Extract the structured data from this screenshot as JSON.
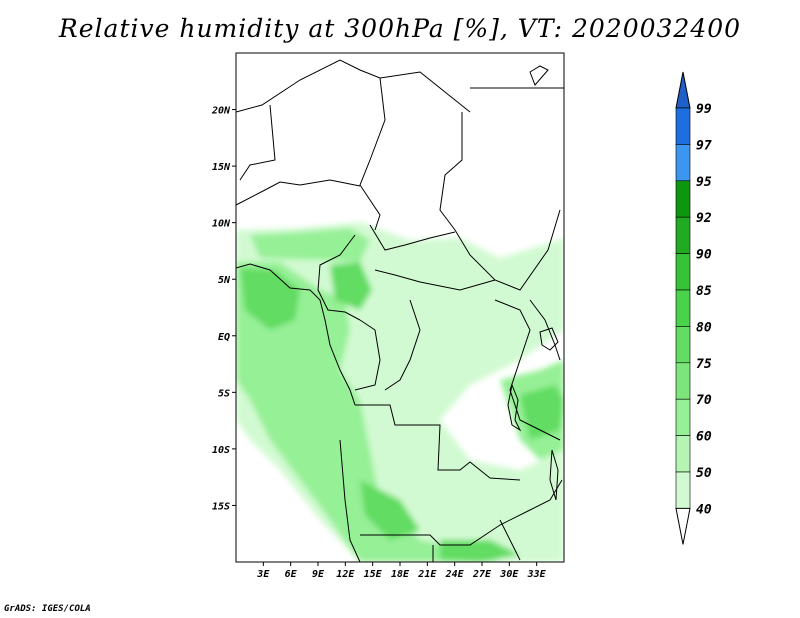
{
  "title": "Relative humidity at 300hPa [%], VT: 2020032400",
  "credit": "GrADS: IGES/COLA",
  "map": {
    "lon_range": [
      0,
      36
    ],
    "lat_range": [
      -20,
      25
    ],
    "lon_ticks": [
      {
        "value": 3,
        "label": "3E"
      },
      {
        "value": 6,
        "label": "6E"
      },
      {
        "value": 9,
        "label": "9E"
      },
      {
        "value": 12,
        "label": "12E"
      },
      {
        "value": 15,
        "label": "15E"
      },
      {
        "value": 18,
        "label": "18E"
      },
      {
        "value": 21,
        "label": "21E"
      },
      {
        "value": 24,
        "label": "24E"
      },
      {
        "value": 27,
        "label": "27E"
      },
      {
        "value": 30,
        "label": "30E"
      },
      {
        "value": 33,
        "label": "33E"
      }
    ],
    "lat_ticks": [
      {
        "value": 20,
        "label": "20N"
      },
      {
        "value": 15,
        "label": "15N"
      },
      {
        "value": 10,
        "label": "10N"
      },
      {
        "value": 5,
        "label": "5N"
      },
      {
        "value": 0,
        "label": "EQ"
      },
      {
        "value": -5,
        "label": "5S"
      },
      {
        "value": -10,
        "label": "10S"
      },
      {
        "value": -15,
        "label": "15S"
      }
    ]
  },
  "colorbar": {
    "levels": [
      "99",
      "97",
      "95",
      "92",
      "90",
      "85",
      "80",
      "75",
      "70",
      "60",
      "50",
      "40"
    ],
    "colors": [
      "#1e6ee0",
      "#3c96f0",
      "#0f960f",
      "#23aa23",
      "#37c337",
      "#4bd24b",
      "#62dc62",
      "#7ce67c",
      "#96f096",
      "#b4f5b4",
      "#d2fad2",
      "#edfcea"
    ],
    "top_color": "#1e5fc8",
    "bottom_color": "#ffffff"
  },
  "colors": {
    "land_border": "#000000",
    "humidity_light": "#d2fad2",
    "humidity_mid": "#96f096",
    "humidity_strong": "#62dc62"
  }
}
